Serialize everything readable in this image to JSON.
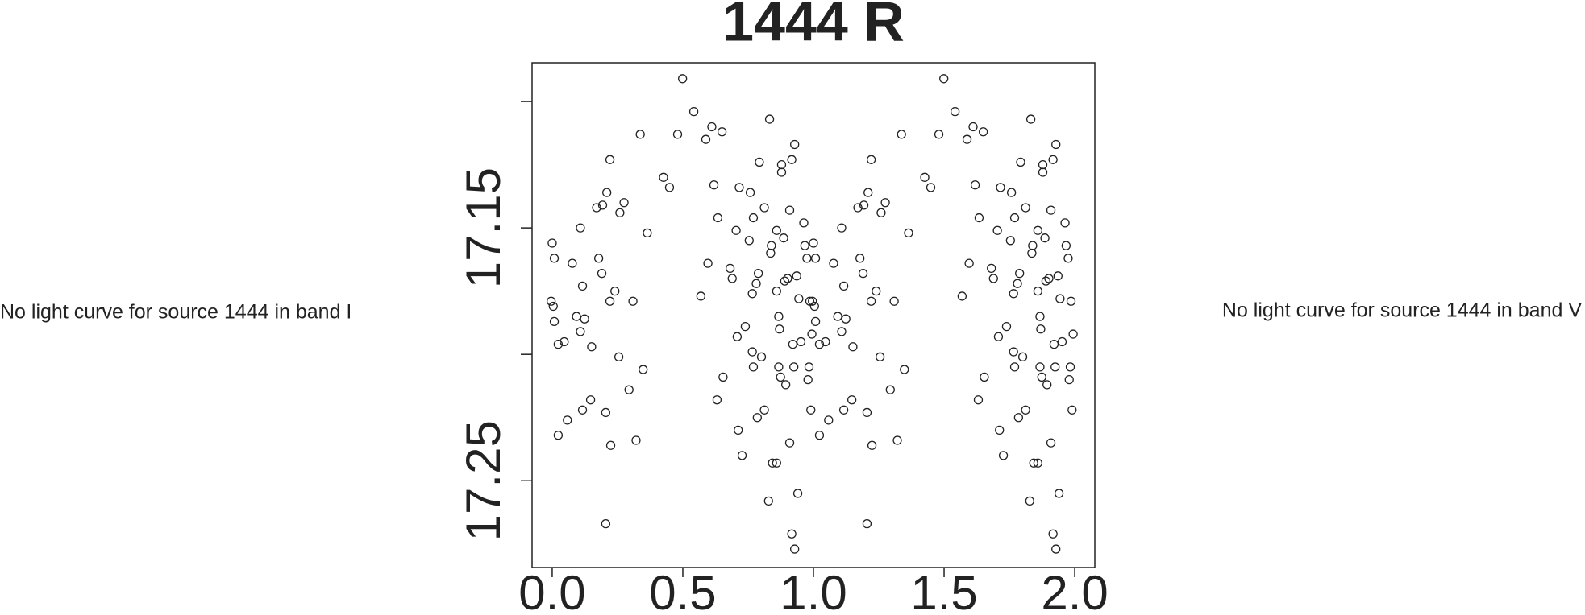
{
  "chart_data": {
    "type": "scatter",
    "title": "1444 R",
    "left_note": "No light curve for source 1444 in band I",
    "right_note": "No light curve for source 1444 in band V",
    "color": "#222222",
    "xlim": [
      -0.077,
      2.077
    ],
    "ylim": [
      17.2843,
      17.0847
    ],
    "xticks": [
      {
        "value": 0,
        "label": "0.0"
      },
      {
        "value": 0.5,
        "label": "0.5"
      },
      {
        "value": 1,
        "label": "1.0"
      },
      {
        "value": 1.5,
        "label": "1.5"
      },
      {
        "value": 2,
        "label": "2.0"
      }
    ],
    "yticks": [
      17.15,
      17.25
    ],
    "yticks_unlabeled": [
      17.1,
      17.2
    ],
    "x": [
      0.0,
      0.008,
      -0.004,
      0.004,
      0.008,
      0.023,
      0.023,
      0.046,
      0.058,
      0.077,
      0.093,
      0.108,
      0.108,
      0.116,
      0.116,
      0.124,
      0.151,
      0.147,
      0.17,
      0.178,
      0.19,
      0.193,
      0.205,
      0.205,
      0.209,
      0.221,
      0.221,
      0.224,
      0.24,
      0.255,
      0.259,
      0.275,
      0.294,
      0.309,
      0.321,
      0.337,
      0.348,
      0.364,
      0.426,
      0.449,
      0.48,
      0.499,
      0.542,
      0.569,
      0.588,
      0.596,
      0.611,
      0.619,
      0.631,
      0.634,
      0.65,
      0.654,
      0.681,
      0.689,
      0.704,
      0.708,
      0.712,
      0.716,
      0.727,
      0.739,
      0.754,
      0.758,
      0.766,
      0.766,
      0.77,
      0.77,
      0.781,
      0.785,
      0.789,
      0.793,
      0.801,
      0.812,
      0.812,
      0.832,
      0.828,
      0.836,
      0.839,
      0.843,
      0.859,
      0.859,
      0.859,
      0.867,
      0.867,
      0.87,
      0.874,
      0.878,
      0.878,
      0.886,
      0.894,
      0.89,
      0.901,
      0.909,
      0.909,
      0.917,
      0.917,
      0.925,
      0.921,
      0.928,
      0.928,
      0.936,
      0.94,
      0.944,
      0.952,
      0.963,
      0.967,
      0.975,
      0.979,
      0.983,
      0.986,
      0.99,
      0.994,
      1.0,
      1.008,
      0.996,
      1.004,
      1.008,
      1.023,
      1.023,
      1.046,
      1.058,
      1.077,
      1.093,
      1.108,
      1.108,
      1.116,
      1.116,
      1.124,
      1.151,
      1.147,
      1.17,
      1.178,
      1.19,
      1.193,
      1.205,
      1.205,
      1.209,
      1.221,
      1.221,
      1.224,
      1.24,
      1.255,
      1.259,
      1.275,
      1.294,
      1.309,
      1.321,
      1.337,
      1.348,
      1.364,
      1.426,
      1.449,
      1.48,
      1.499,
      1.542,
      1.569,
      1.588,
      1.596,
      1.611,
      1.619,
      1.631,
      1.634,
      1.65,
      1.654,
      1.681,
      1.689,
      1.704,
      1.708,
      1.712,
      1.716,
      1.727,
      1.739,
      1.754,
      1.758,
      1.766,
      1.766,
      1.77,
      1.77,
      1.781,
      1.785,
      1.789,
      1.793,
      1.801,
      1.812,
      1.812,
      1.832,
      1.828,
      1.836,
      1.839,
      1.843,
      1.859,
      1.859,
      1.859,
      1.867,
      1.867,
      1.87,
      1.874,
      1.878,
      1.878,
      1.886,
      1.894,
      1.89,
      1.901,
      1.909,
      1.909,
      1.917,
      1.917,
      1.925,
      1.921,
      1.928,
      1.928,
      1.936,
      1.94,
      1.944,
      1.952,
      1.963,
      1.967,
      1.975,
      1.979,
      1.983,
      1.986,
      1.99,
      1.994
    ],
    "values": [
      17.156,
      17.162,
      17.179,
      17.181,
      17.187,
      17.232,
      17.196,
      17.195,
      17.226,
      17.164,
      17.185,
      17.15,
      17.191,
      17.222,
      17.173,
      17.186,
      17.197,
      17.218,
      17.142,
      17.162,
      17.168,
      17.141,
      17.223,
      17.267,
      17.136,
      17.123,
      17.179,
      17.236,
      17.175,
      17.201,
      17.144,
      17.14,
      17.214,
      17.179,
      17.234,
      17.113,
      17.206,
      17.152,
      17.13,
      17.134,
      17.113,
      17.091,
      17.104,
      17.177,
      17.115,
      17.164,
      17.11,
      17.133,
      17.218,
      17.146,
      17.112,
      17.209,
      17.166,
      17.17,
      17.151,
      17.193,
      17.23,
      17.134,
      17.24,
      17.189,
      17.155,
      17.136,
      17.199,
      17.176,
      17.146,
      17.205,
      17.172,
      17.225,
      17.168,
      17.124,
      17.201,
      17.142,
      17.222,
      17.107,
      17.258,
      17.16,
      17.157,
      17.243,
      17.243,
      17.151,
      17.175,
      17.185,
      17.205,
      17.19,
      17.209,
      17.125,
      17.128,
      17.154,
      17.212,
      17.171,
      17.17,
      17.235,
      17.143,
      17.123,
      17.271,
      17.205,
      17.196,
      17.117,
      17.277,
      17.169,
      17.255,
      17.178,
      17.195,
      17.148,
      17.157,
      17.162,
      17.21,
      17.205,
      17.179,
      17.222,
      17.192,
      17.156,
      17.162,
      17.179,
      17.181,
      17.187,
      17.232,
      17.196,
      17.195,
      17.226,
      17.164,
      17.185,
      17.15,
      17.191,
      17.222,
      17.173,
      17.186,
      17.197,
      17.218,
      17.142,
      17.162,
      17.168,
      17.141,
      17.223,
      17.267,
      17.136,
      17.123,
      17.179,
      17.236,
      17.175,
      17.201,
      17.144,
      17.14,
      17.214,
      17.179,
      17.234,
      17.113,
      17.206,
      17.152,
      17.13,
      17.134,
      17.113,
      17.091,
      17.104,
      17.177,
      17.115,
      17.164,
      17.11,
      17.133,
      17.218,
      17.146,
      17.112,
      17.209,
      17.166,
      17.17,
      17.151,
      17.193,
      17.23,
      17.134,
      17.24,
      17.189,
      17.155,
      17.136,
      17.199,
      17.176,
      17.146,
      17.205,
      17.172,
      17.225,
      17.168,
      17.124,
      17.201,
      17.142,
      17.222,
      17.107,
      17.258,
      17.16,
      17.157,
      17.243,
      17.243,
      17.151,
      17.175,
      17.185,
      17.205,
      17.19,
      17.209,
      17.125,
      17.128,
      17.154,
      17.212,
      17.171,
      17.17,
      17.235,
      17.143,
      17.123,
      17.271,
      17.205,
      17.196,
      17.117,
      17.277,
      17.169,
      17.255,
      17.178,
      17.195,
      17.148,
      17.157,
      17.162,
      17.21,
      17.205,
      17.179,
      17.222,
      17.192
    ]
  }
}
